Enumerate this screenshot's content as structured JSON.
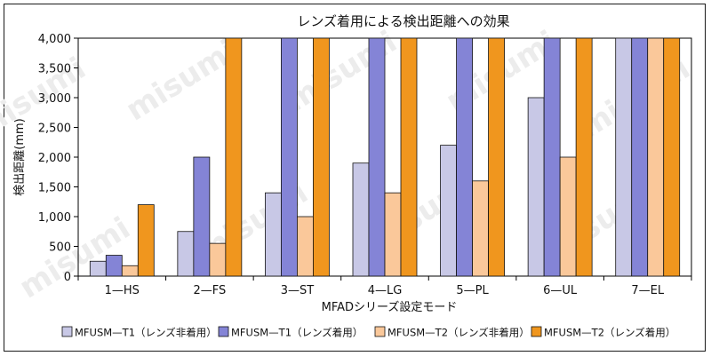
{
  "chart_data": {
    "type": "bar",
    "title": "レンズ着用による検出距離への効果",
    "xlabel": "MFADシリーズ設定モード",
    "ylabel": "検出距離(mm)",
    "ylim": [
      0,
      4000
    ],
    "yticks": [
      "0",
      "500",
      "1,000",
      "1,500",
      "2,000",
      "2,500",
      "3,000",
      "3,500",
      "4,000"
    ],
    "ytick_values": [
      0,
      500,
      1000,
      1500,
      2000,
      2500,
      3000,
      3500,
      4000
    ],
    "grid": false,
    "legend_position": "bottom",
    "categories": [
      "1—HS",
      "2—FS",
      "3—ST",
      "4—LG",
      "5—PL",
      "6—UL",
      "7—EL"
    ],
    "series": [
      {
        "name": "MFUSM—T1（レンズ非着用）",
        "color": "#c8c8e6",
        "values": [
          250,
          750,
          1400,
          1900,
          2200,
          3000,
          4000
        ]
      },
      {
        "name": "MFUSM—T1（レンズ着用）",
        "color": "#8484d6",
        "values": [
          350,
          2000,
          4000,
          4000,
          4000,
          4000,
          4000
        ]
      },
      {
        "name": "MFUSM—T2（レンズ非着用）",
        "color": "#fac89a",
        "values": [
          175,
          550,
          1000,
          1400,
          1600,
          2000,
          4000
        ]
      },
      {
        "name": "MFUSM—T2（レンズ着用）",
        "color": "#f0961e",
        "values": [
          1200,
          4000,
          4000,
          4000,
          4000,
          4000,
          4000
        ]
      }
    ]
  },
  "watermark": "misumi"
}
